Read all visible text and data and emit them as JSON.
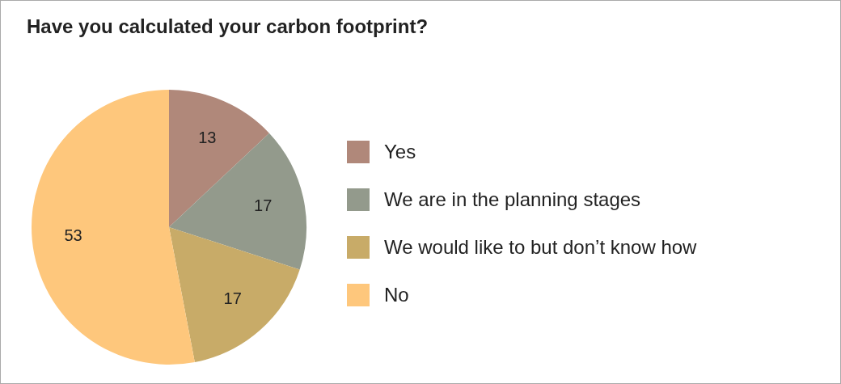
{
  "chart_data": {
    "type": "pie",
    "title": "Have you calculated your carbon footprint?",
    "categories": [
      "Yes",
      "We are in the planning stages",
      "We would like to but don’t know how",
      "No"
    ],
    "values": [
      13,
      17,
      17,
      53
    ],
    "colors": [
      "#b0887a",
      "#939a8c",
      "#c8ab68",
      "#fec77c"
    ],
    "data_labels": true,
    "legend": "right"
  }
}
